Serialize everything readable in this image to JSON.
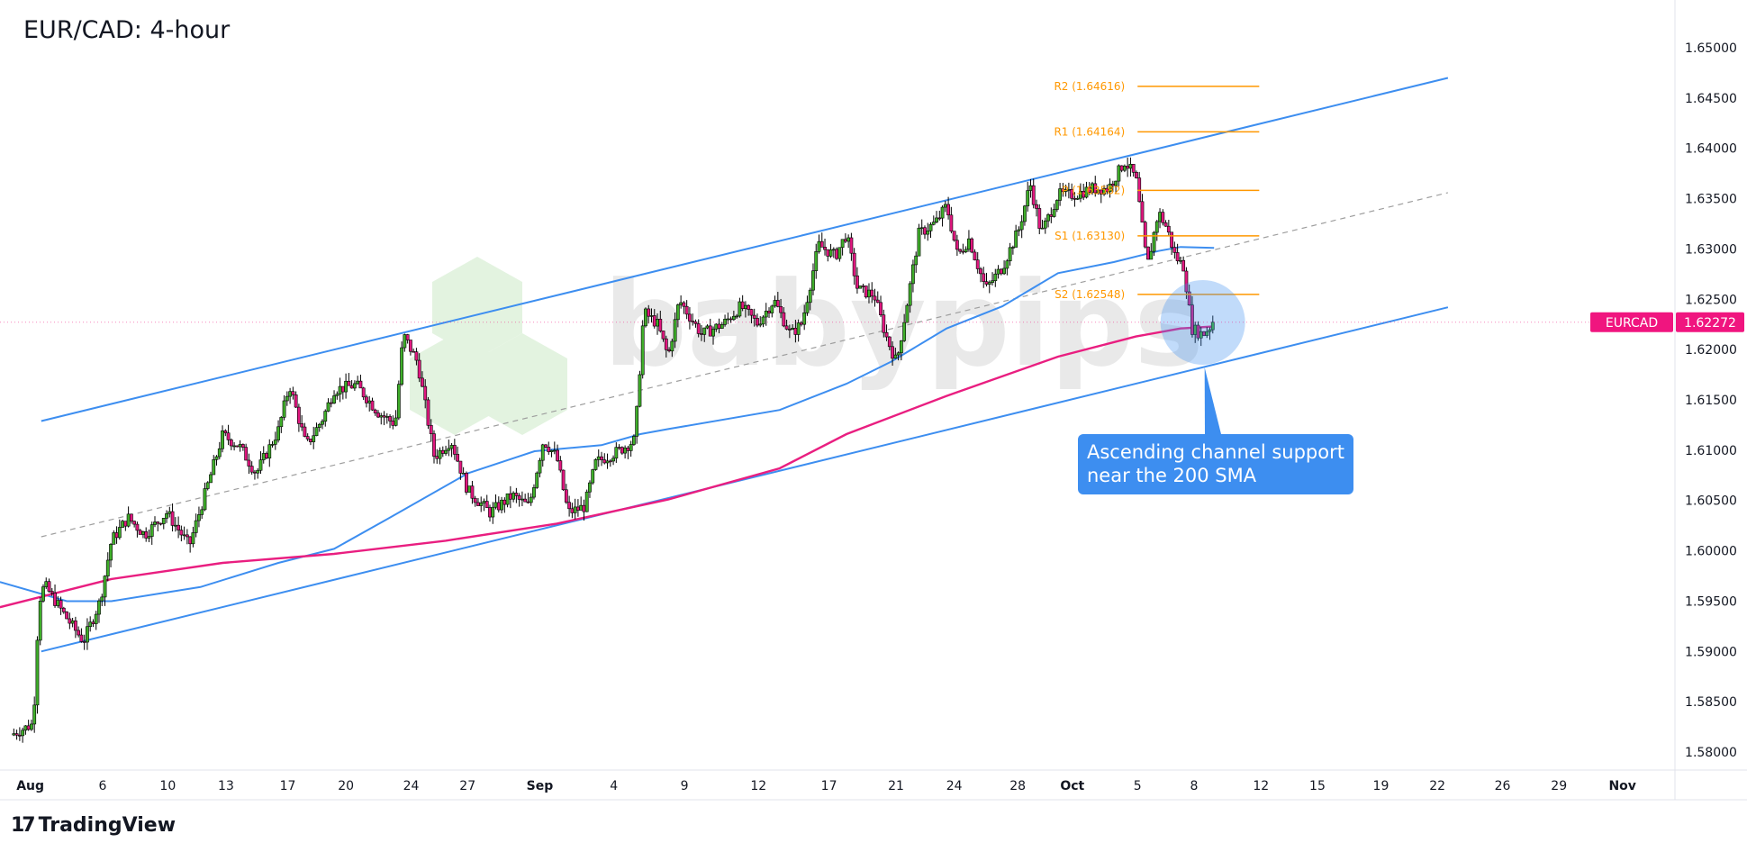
{
  "header": {
    "title": "EUR/CAD: 4-hour"
  },
  "footer": {
    "brand": "TradingView"
  },
  "watermark": {
    "text": "babypips"
  },
  "annotation": {
    "line1": "Ascending channel support",
    "line2": "near the 200 SMA"
  },
  "colors": {
    "up": "#3fae2a",
    "down": "#e0177f",
    "channel": "#3d8ef0",
    "sma100": "#3d8ef0",
    "sma200": "#e91e80",
    "pivot": "#ff9800",
    "price_tag": "#f0157f"
  },
  "chart_data": {
    "type": "candlestick",
    "title": "EUR/CAD: 4-hour",
    "symbol": "EURCAD",
    "last_price": "1.62272",
    "x_unit": "days on chart time axis (from Aug 1)",
    "ylim": [
      1.5775,
      1.6545
    ],
    "y_ticks": [
      "1.65000",
      "1.64500",
      "1.64000",
      "1.63500",
      "1.63000",
      "1.62500",
      "1.62000",
      "1.61500",
      "1.61000",
      "1.60500",
      "1.60000",
      "1.59500",
      "1.59000",
      "1.58500",
      "1.58000"
    ],
    "x_ticks": [
      {
        "label": "Aug",
        "t": 0.9,
        "bold": true
      },
      {
        "label": "6",
        "t": 5.0
      },
      {
        "label": "10",
        "t": 8.7
      },
      {
        "label": "13",
        "t": 12.0
      },
      {
        "label": "17",
        "t": 15.5
      },
      {
        "label": "20",
        "t": 18.8
      },
      {
        "label": "24",
        "t": 22.5
      },
      {
        "label": "27",
        "t": 25.7
      },
      {
        "label": "Sep",
        "t": 29.8,
        "bold": true
      },
      {
        "label": "4",
        "t": 34.0
      },
      {
        "label": "9",
        "t": 38.0
      },
      {
        "label": "12",
        "t": 42.2
      },
      {
        "label": "17",
        "t": 46.2
      },
      {
        "label": "21",
        "t": 50.0
      },
      {
        "label": "24",
        "t": 53.3
      },
      {
        "label": "28",
        "t": 56.9
      },
      {
        "label": "Oct",
        "t": 60.0,
        "bold": true
      },
      {
        "label": "5",
        "t": 63.7
      },
      {
        "label": "8",
        "t": 66.9
      },
      {
        "label": "12",
        "t": 70.7
      },
      {
        "label": "15",
        "t": 73.9
      },
      {
        "label": "19",
        "t": 77.5
      },
      {
        "label": "22",
        "t": 80.7
      },
      {
        "label": "26",
        "t": 84.4
      },
      {
        "label": "29",
        "t": 87.6
      },
      {
        "label": "Nov",
        "t": 91.2,
        "bold": true
      }
    ],
    "price_path": [
      [
        -0.2,
        1.5817
      ],
      [
        1.07,
        1.5828
      ],
      [
        1.39,
        1.595
      ],
      [
        1.71,
        1.5966
      ],
      [
        2.97,
        1.5933
      ],
      [
        3.92,
        1.591
      ],
      [
        4.86,
        1.595
      ],
      [
        5.5,
        1.601
      ],
      [
        6.44,
        1.6033
      ],
      [
        7.39,
        1.6016
      ],
      [
        8.65,
        1.6038
      ],
      [
        9.92,
        1.6005
      ],
      [
        10.87,
        1.606
      ],
      [
        11.81,
        1.6115
      ],
      [
        12.76,
        1.6104
      ],
      [
        13.71,
        1.6077
      ],
      [
        14.97,
        1.612
      ],
      [
        15.6,
        1.6165
      ],
      [
        16.55,
        1.6104
      ],
      [
        17.5,
        1.6132
      ],
      [
        18.13,
        1.616
      ],
      [
        19.39,
        1.6165
      ],
      [
        20.66,
        1.6137
      ],
      [
        21.6,
        1.6126
      ],
      [
        22.05,
        1.6215
      ],
      [
        22.87,
        1.6187
      ],
      [
        23.82,
        1.6093
      ],
      [
        24.76,
        1.611
      ],
      [
        25.71,
        1.606
      ],
      [
        26.97,
        1.6038
      ],
      [
        28.24,
        1.6055
      ],
      [
        29.18,
        1.6044
      ],
      [
        30.0,
        1.611
      ],
      [
        30.76,
        1.6093
      ],
      [
        31.4,
        1.6038
      ],
      [
        32.34,
        1.6044
      ],
      [
        32.98,
        1.6088
      ],
      [
        34.24,
        1.6099
      ],
      [
        35.19,
        1.611
      ],
      [
        35.69,
        1.6237
      ],
      [
        36.45,
        1.6226
      ],
      [
        37.08,
        1.6193
      ],
      [
        37.71,
        1.6249
      ],
      [
        38.98,
        1.6215
      ],
      [
        40.24,
        1.6226
      ],
      [
        41.19,
        1.6243
      ],
      [
        42.13,
        1.6226
      ],
      [
        43.08,
        1.6249
      ],
      [
        44.03,
        1.6215
      ],
      [
        44.66,
        1.6226
      ],
      [
        45.61,
        1.6304
      ],
      [
        46.56,
        1.6293
      ],
      [
        47.19,
        1.6315
      ],
      [
        47.82,
        1.626
      ],
      [
        48.77,
        1.6254
      ],
      [
        49.4,
        1.6215
      ],
      [
        50.03,
        1.6187
      ],
      [
        50.66,
        1.6249
      ],
      [
        51.3,
        1.6315
      ],
      [
        52.24,
        1.6326
      ],
      [
        52.87,
        1.6343
      ],
      [
        53.5,
        1.6293
      ],
      [
        54.14,
        1.631
      ],
      [
        55.09,
        1.626
      ],
      [
        56.03,
        1.6282
      ],
      [
        56.98,
        1.632
      ],
      [
        57.61,
        1.6365
      ],
      [
        58.24,
        1.6315
      ],
      [
        59.19,
        1.6354
      ],
      [
        60.14,
        1.6354
      ],
      [
        61.09,
        1.636
      ],
      [
        62.03,
        1.636
      ],
      [
        62.98,
        1.6387
      ],
      [
        63.61,
        1.637
      ],
      [
        64.25,
        1.6282
      ],
      [
        64.88,
        1.6337
      ],
      [
        65.38,
        1.632
      ],
      [
        65.82,
        1.6293
      ],
      [
        66.33,
        1.6282
      ],
      [
        66.77,
        1.6221
      ],
      [
        67.4,
        1.6215
      ],
      [
        68.04,
        1.6227
      ]
    ],
    "sma100": [
      [
        -0.82,
        1.5969
      ],
      [
        2.97,
        1.595
      ],
      [
        5.5,
        1.595
      ],
      [
        10.55,
        1.5964
      ],
      [
        14.97,
        1.5988
      ],
      [
        18.13,
        1.6002
      ],
      [
        21.29,
        1.6033
      ],
      [
        25.71,
        1.6077
      ],
      [
        29.5,
        1.6099
      ],
      [
        33.29,
        1.6105
      ],
      [
        35.5,
        1.6116
      ],
      [
        37.08,
        1.6121
      ],
      [
        43.4,
        1.614
      ],
      [
        47.19,
        1.6166
      ],
      [
        49.72,
        1.6188
      ],
      [
        52.87,
        1.6221
      ],
      [
        56.03,
        1.6243
      ],
      [
        59.19,
        1.6276
      ],
      [
        62.35,
        1.6287
      ],
      [
        64.88,
        1.6298
      ],
      [
        66.14,
        1.6302
      ],
      [
        68.04,
        1.6301
      ]
    ],
    "sma200": [
      [
        -0.82,
        1.5944
      ],
      [
        5.5,
        1.5972
      ],
      [
        11.81,
        1.5988
      ],
      [
        18.13,
        1.5997
      ],
      [
        24.45,
        1.601
      ],
      [
        30.76,
        1.6027
      ],
      [
        37.08,
        1.6051
      ],
      [
        43.4,
        1.6082
      ],
      [
        47.19,
        1.6116
      ],
      [
        52.87,
        1.6154
      ],
      [
        59.19,
        1.6193
      ],
      [
        63.61,
        1.6213
      ],
      [
        66.14,
        1.6221
      ],
      [
        68.04,
        1.6223
      ]
    ],
    "channel_upper": [
      [
        1.52,
        1.6129
      ],
      [
        81.3,
        1.647
      ]
    ],
    "channel_lower": [
      [
        1.52,
        1.59
      ],
      [
        81.3,
        1.6242
      ]
    ],
    "channel_mid": [
      [
        1.52,
        1.6014
      ],
      [
        81.3,
        1.6356
      ]
    ],
    "pivots": {
      "t_range": [
        63.7,
        70.6
      ],
      "levels": [
        {
          "name": "R2",
          "value": 1.64616,
          "label": "R2 (1.64616)"
        },
        {
          "name": "R1",
          "value": 1.64164,
          "label": "R1 (1.64164)"
        },
        {
          "name": "P",
          "value": 1.63582,
          "label": "P (1.63582)"
        },
        {
          "name": "S1",
          "value": 1.6313,
          "label": "S1 (1.63130)"
        },
        {
          "name": "S2",
          "value": 1.62548,
          "label": "S2 (1.62548)"
        }
      ]
    },
    "highlight": {
      "t": 67.4,
      "price": 1.6227
    }
  }
}
